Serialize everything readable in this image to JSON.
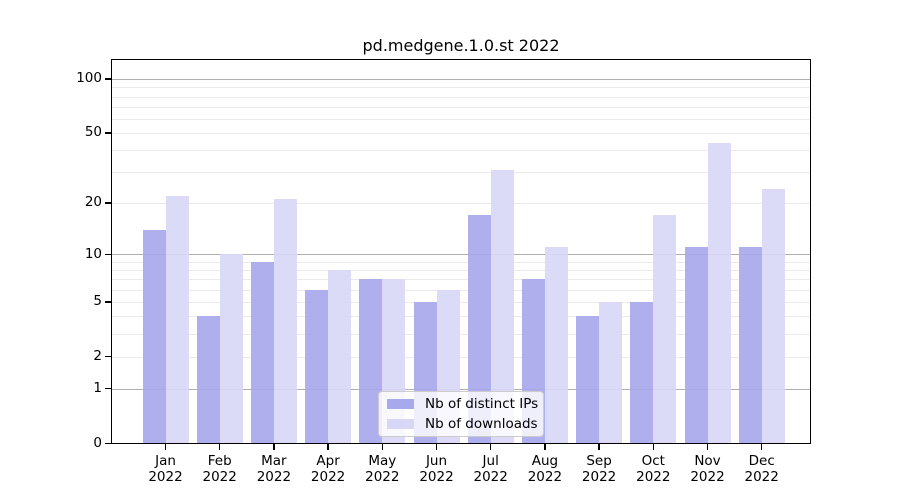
{
  "title": "pd.medgene.1.0.st 2022",
  "chart_data": {
    "type": "bar",
    "title": "pd.medgene.1.0.st 2022",
    "categories": [
      "Jan 2022",
      "Feb 2022",
      "Mar 2022",
      "Apr 2022",
      "May 2022",
      "Jun 2022",
      "Jul 2022",
      "Aug 2022",
      "Sep 2022",
      "Oct 2022",
      "Nov 2022",
      "Dec 2022"
    ],
    "month_labels": [
      "Jan",
      "Feb",
      "Mar",
      "Apr",
      "May",
      "Jun",
      "Jul",
      "Aug",
      "Sep",
      "Oct",
      "Nov",
      "Dec"
    ],
    "year_label": "2022",
    "series": [
      {
        "name": "Nb of distinct IPs",
        "color": "#a8a8ec",
        "values": [
          14,
          4,
          9,
          6,
          7,
          5,
          17,
          7,
          4,
          5,
          11,
          11
        ]
      },
      {
        "name": "Nb of downloads",
        "color": "#d8d8f6",
        "values": [
          22,
          10,
          21,
          8,
          7,
          6,
          31,
          11,
          5,
          17,
          44,
          24
        ]
      }
    ],
    "ylabel": "",
    "xlabel": "",
    "yscale": "log(value+1)",
    "ylim": [
      0,
      131
    ],
    "yticks": [
      0,
      1,
      2,
      5,
      10,
      20,
      50,
      100
    ],
    "major_gridlines": [
      1,
      10,
      100
    ],
    "minor_gridlines": [
      2,
      3,
      4,
      5,
      6,
      7,
      8,
      9,
      20,
      30,
      40,
      50,
      60,
      70,
      80,
      90
    ],
    "grid": true,
    "legend_position": "lower center"
  },
  "legend": {
    "items": [
      {
        "label": "Nb of distinct IPs",
        "color": "#a8a8ec"
      },
      {
        "label": "Nb of downloads",
        "color": "#d8d8f6"
      }
    ]
  },
  "colors": {
    "distinct_ips": "#a8a8ec",
    "downloads": "#d8d8f6",
    "major_grid": "#b0b0b0",
    "minor_grid": "#ebebeb",
    "axis": "#000000"
  }
}
